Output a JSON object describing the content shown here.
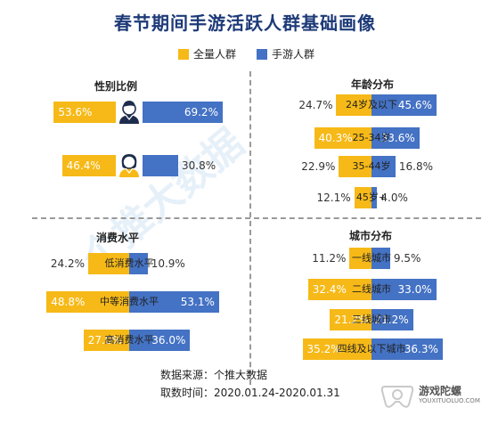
{
  "title": "春节期间手游活跃人群基础画像",
  "legend": {
    "all": "全量人群",
    "mobile": "手游人群"
  },
  "colors": {
    "all": "#f6b917",
    "mobile": "#4472c4"
  },
  "panels": [
    {
      "title": "性别比例",
      "rows": [
        {
          "label": "",
          "icon": "male-person-icon",
          "all": "53.6%",
          "mobile": "69.2%"
        },
        {
          "label": "",
          "icon": "female-person-icon",
          "all": "46.4%",
          "mobile": "30.8%"
        }
      ]
    },
    {
      "title": "年龄分布",
      "rows": [
        {
          "label": "24岁及以下",
          "all": "24.7%",
          "mobile": "45.6%"
        },
        {
          "label": "25-34岁",
          "all": "40.3%",
          "mobile": "33.6%"
        },
        {
          "label": "35-44岁",
          "all": "22.9%",
          "mobile": "16.8%"
        },
        {
          "label": "45岁+",
          "all": "12.1%",
          "mobile": "4.0%"
        }
      ]
    },
    {
      "title": "消费水平",
      "rows": [
        {
          "label": "低消费水平",
          "all": "24.2%",
          "mobile": "10.9%"
        },
        {
          "label": "中等消费水平",
          "all": "48.8%",
          "mobile": "53.1%"
        },
        {
          "label": "高消费水平",
          "all": "27.0%",
          "mobile": "36.0%"
        }
      ]
    },
    {
      "title": "城市分布",
      "rows": [
        {
          "label": "一线城市",
          "all": "11.2%",
          "mobile": "9.5%"
        },
        {
          "label": "二线城市",
          "all": "32.4%",
          "mobile": "33.0%"
        },
        {
          "label": "三线城市",
          "all": "21.2%",
          "mobile": "21.2%"
        },
        {
          "label": "四线及以下城市",
          "all": "35.2%",
          "mobile": "36.3%"
        }
      ]
    }
  ],
  "source": {
    "line1": "数据来源：个推大数据",
    "line2": "取数时间：2020.01.24-2020.01.31"
  },
  "watermark": "个推大数据",
  "logo": {
    "name": "游戏陀螺",
    "url": "YOUXITUOLUO.COM"
  },
  "chart_data": {
    "type": "bar",
    "title": "春节期间手游活跃人群基础画像",
    "legend": [
      "全量人群",
      "手游人群"
    ],
    "panels": [
      {
        "title": "性别比例",
        "categories": [
          "男",
          "女"
        ],
        "series": [
          {
            "name": "全量人群",
            "values": [
              53.6,
              46.4
            ]
          },
          {
            "name": "手游人群",
            "values": [
              69.2,
              30.8
            ]
          }
        ]
      },
      {
        "title": "年龄分布",
        "categories": [
          "24岁及以下",
          "25-34岁",
          "35-44岁",
          "45岁+"
        ],
        "series": [
          {
            "name": "全量人群",
            "values": [
              24.7,
              40.3,
              22.9,
              12.1
            ]
          },
          {
            "name": "手游人群",
            "values": [
              45.6,
              33.6,
              16.8,
              4.0
            ]
          }
        ]
      },
      {
        "title": "消费水平",
        "categories": [
          "低消费水平",
          "中等消费水平",
          "高消费水平"
        ],
        "series": [
          {
            "name": "全量人群",
            "values": [
              24.2,
              48.8,
              27.0
            ]
          },
          {
            "name": "手游人群",
            "values": [
              10.9,
              53.1,
              36.0
            ]
          }
        ]
      },
      {
        "title": "城市分布",
        "categories": [
          "一线城市",
          "二线城市",
          "三线城市",
          "四线及以下城市"
        ],
        "series": [
          {
            "name": "全量人群",
            "values": [
              11.2,
              32.4,
              21.2,
              35.2
            ]
          },
          {
            "name": "手游人群",
            "values": [
              9.5,
              33.0,
              21.2,
              36.3
            ]
          }
        ]
      }
    ]
  }
}
